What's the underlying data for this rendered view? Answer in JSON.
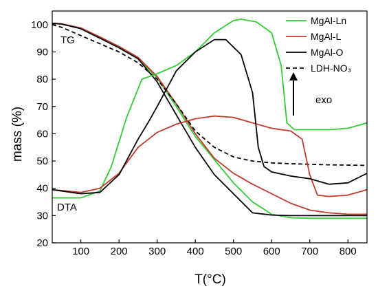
{
  "chart_data": {
    "type": "line",
    "xlabel": "T(°C)",
    "ylabel": "mass (%)",
    "xlim": [
      25,
      850
    ],
    "ylim": [
      20,
      105
    ],
    "x_ticks": [
      100,
      200,
      300,
      400,
      500,
      600,
      700,
      800
    ],
    "y_ticks": [
      20,
      30,
      40,
      50,
      60,
      70,
      80,
      90,
      100
    ],
    "grid": false,
    "legend_position": "top-right",
    "annotations": {
      "tg": "TG",
      "dta": "DTA",
      "exo": "exo"
    },
    "series": [
      {
        "name": "MgAl-Ln",
        "color": "#33cc33",
        "dash": "solid",
        "curve": "TG",
        "x": [
          25,
          50,
          100,
          150,
          200,
          250,
          300,
          350,
          400,
          450,
          500,
          550,
          600,
          650,
          700,
          750,
          800,
          850
        ],
        "y": [
          100.5,
          100.2,
          98.5,
          95,
          91.5,
          87.5,
          80.5,
          70,
          59,
          50.5,
          42,
          35,
          30.5,
          29.2,
          29,
          29,
          29,
          29
        ]
      },
      {
        "name": "MgAl-L",
        "color": "#c0392b",
        "dash": "solid",
        "curve": "TG",
        "x": [
          25,
          50,
          100,
          150,
          200,
          250,
          300,
          350,
          400,
          450,
          500,
          550,
          600,
          650,
          700,
          750,
          800,
          850
        ],
        "y": [
          100.5,
          100.3,
          98.8,
          95.5,
          92,
          88,
          81,
          71,
          60,
          51,
          45.5,
          41.5,
          38,
          34.5,
          32,
          31,
          30.5,
          30.5
        ]
      },
      {
        "name": "MgAl-O",
        "color": "#000000",
        "dash": "solid",
        "curve": "TG",
        "x": [
          25,
          50,
          100,
          150,
          200,
          250,
          300,
          350,
          400,
          450,
          500,
          550,
          600,
          650,
          700,
          750,
          800,
          850
        ],
        "y": [
          100.5,
          100.2,
          98.5,
          95,
          91.5,
          87.5,
          79,
          67,
          55,
          45,
          38,
          31,
          30.2,
          30,
          30,
          30,
          30,
          30
        ]
      },
      {
        "name": "LDH-NO₃",
        "color": "#000000",
        "dash": "dashed",
        "curve": "TG",
        "x": [
          25,
          50,
          100,
          150,
          200,
          250,
          300,
          350,
          400,
          450,
          500,
          550,
          600,
          650,
          700,
          750,
          800,
          850
        ],
        "y": [
          100,
          99,
          96,
          93,
          90,
          86,
          80,
          71,
          61,
          55,
          51.5,
          50,
          49.3,
          49,
          48.8,
          48.6,
          48.5,
          48.4
        ]
      },
      {
        "name": "MgAl-Ln",
        "color": "#33cc33",
        "dash": "solid",
        "curve": "DTA",
        "x": [
          25,
          100,
          150,
          180,
          220,
          260,
          300,
          350,
          400,
          450,
          500,
          520,
          560,
          600,
          625,
          640,
          660,
          700,
          750,
          800,
          850
        ],
        "y": [
          36.5,
          36.5,
          39,
          48,
          66,
          80,
          82,
          85,
          90,
          97,
          101.5,
          102,
          101,
          97,
          85,
          64,
          61.5,
          61.5,
          61.5,
          62,
          64
        ]
      },
      {
        "name": "MgAl-L",
        "color": "#c0392b",
        "dash": "solid",
        "curve": "DTA",
        "x": [
          25,
          100,
          150,
          200,
          250,
          300,
          350,
          400,
          450,
          500,
          550,
          600,
          650,
          680,
          700,
          720,
          750,
          800,
          850
        ],
        "y": [
          39.5,
          38.5,
          40,
          45.5,
          55,
          60.5,
          63.5,
          65.5,
          66.5,
          66,
          64,
          62,
          61,
          58,
          45,
          37.5,
          37,
          37.5,
          39.5
        ]
      },
      {
        "name": "MgAl-O",
        "color": "#000000",
        "dash": "solid",
        "curve": "DTA",
        "x": [
          25,
          100,
          150,
          200,
          250,
          280,
          300,
          350,
          400,
          450,
          480,
          520,
          550,
          565,
          580,
          600,
          650,
          700,
          750,
          800,
          850
        ],
        "y": [
          39.5,
          38,
          38.5,
          45,
          58,
          65,
          70,
          83,
          90,
          94.5,
          94.5,
          89,
          75,
          55,
          48,
          46,
          44.5,
          43.5,
          41.5,
          42,
          45.5
        ]
      }
    ]
  }
}
